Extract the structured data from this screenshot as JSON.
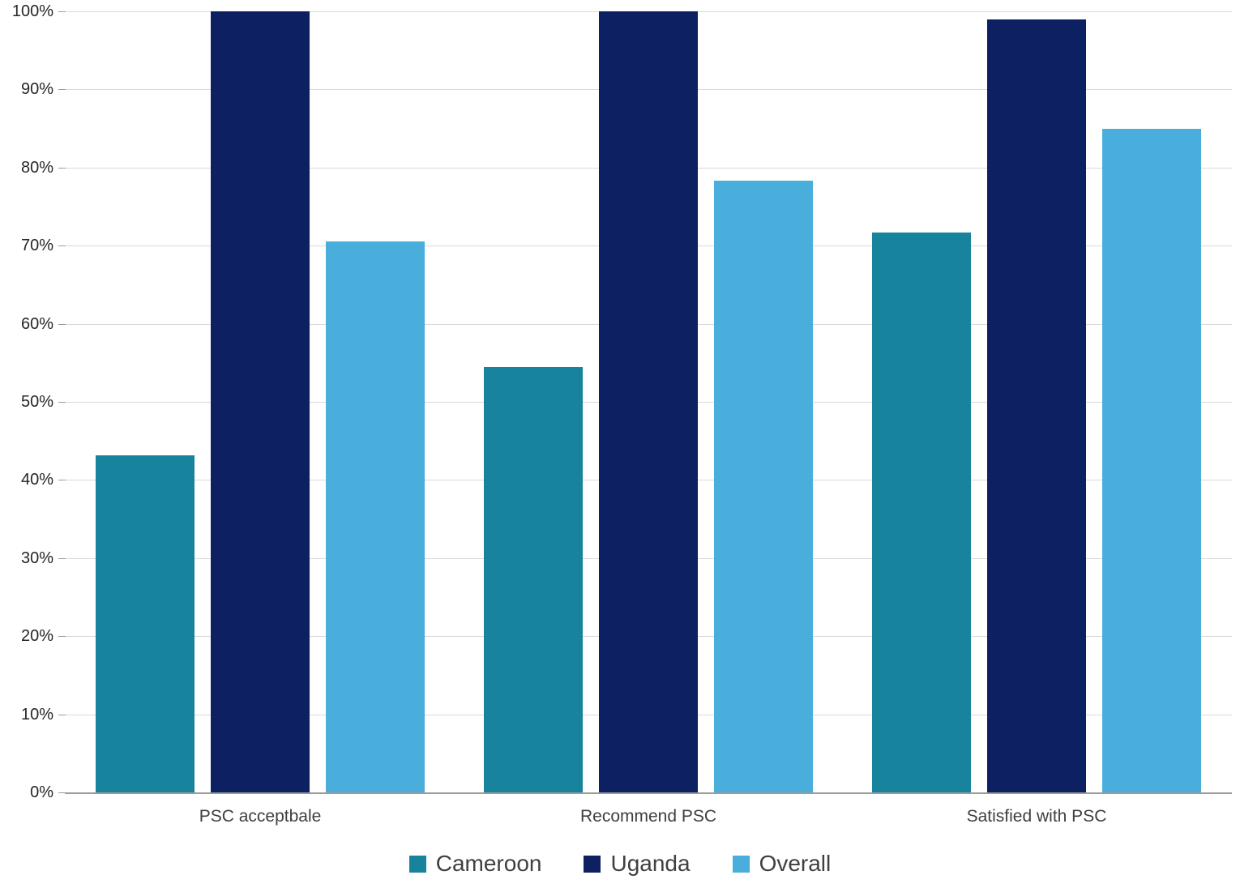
{
  "chart_data": {
    "type": "bar",
    "title": "",
    "xlabel": "",
    "ylabel": "",
    "ylim": [
      0,
      100
    ],
    "grid": "horizontal",
    "legend_position": "bottom-center",
    "yticks": [
      0,
      10,
      20,
      30,
      40,
      50,
      60,
      70,
      80,
      90,
      100
    ],
    "ytick_suffix": "%",
    "categories": [
      "PSC acceptbale",
      "Recommend PSC",
      "Satisfied with PSC"
    ],
    "series": [
      {
        "name": "Cameroon",
        "color": "#17839d",
        "values": [
          43.2,
          54.5,
          71.7
        ]
      },
      {
        "name": "Uganda",
        "color": "#0c2062",
        "values": [
          100,
          100,
          99
        ]
      },
      {
        "name": "Overall",
        "color": "#4aaedc",
        "values": [
          70.5,
          78.3,
          85
        ]
      }
    ]
  }
}
